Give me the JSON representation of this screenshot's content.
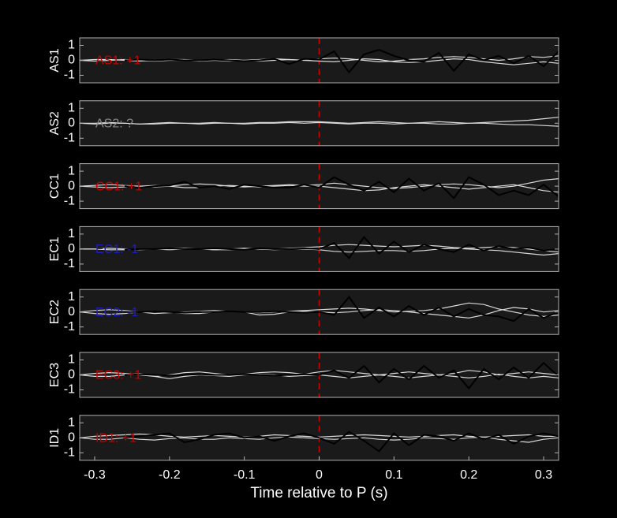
{
  "chart_data": [
    {
      "type": "line",
      "ylabel": "AS1",
      "annotation": "AS1: +1",
      "annotation_color": "#cc0000",
      "vline": 0,
      "vline_color": "#cc0000",
      "ylim": [
        -1.5,
        1.5
      ],
      "yticks": [
        -1,
        0,
        1
      ],
      "xlim": [
        -0.32,
        0.32
      ],
      "x": [
        -0.32,
        -0.3,
        -0.28,
        -0.26,
        -0.24,
        -0.22,
        -0.2,
        -0.18,
        -0.16,
        -0.14,
        -0.12,
        -0.1,
        -0.08,
        -0.06,
        -0.04,
        -0.02,
        0,
        0.02,
        0.04,
        0.06,
        0.08,
        0.1,
        0.12,
        0.14,
        0.16,
        0.18,
        0.2,
        0.22,
        0.24,
        0.26,
        0.28,
        0.3,
        0.32
      ],
      "series": [
        {
          "color": "#d9d9d9",
          "values": [
            0,
            0.05,
            0.05,
            0,
            -0.05,
            0,
            0.05,
            0.05,
            0,
            0,
            -0.05,
            0,
            0.05,
            0.1,
            0.05,
            0,
            0.1,
            0.15,
            0.1,
            0,
            -0.1,
            -0.05,
            0.05,
            0.1,
            0.2,
            0.25,
            0.2,
            0.1,
            0,
            0.1,
            0.25,
            0.2,
            0.3
          ]
        },
        {
          "color": "#d9d9d9",
          "values": [
            0,
            -0.05,
            0,
            0.05,
            0,
            -0.05,
            0,
            0,
            -0.05,
            0,
            0.05,
            0,
            -0.05,
            0,
            0.05,
            0,
            -0.05,
            -0.1,
            0,
            0.1,
            0.05,
            -0.1,
            -0.15,
            -0.1,
            0,
            0.1,
            0.05,
            -0.1,
            -0.2,
            -0.3,
            -0.2,
            -0.1,
            -0.2
          ]
        },
        {
          "color": "#000000",
          "values": [
            null,
            null,
            null,
            0,
            0.05,
            0,
            0.05,
            0,
            0,
            0.05,
            0,
            -0.05,
            0,
            0.1,
            -0.25,
            0.1,
            0.05,
            0.6,
            -0.8,
            0.4,
            0.7,
            0.3,
            0,
            -0.1,
            0.5,
            -0.7,
            0.4,
            0,
            0.3,
            -0.2,
            0.3,
            -0.4,
            0.6
          ]
        }
      ]
    },
    {
      "type": "line",
      "ylabel": "AS2",
      "annotation": "AS2: ?",
      "annotation_color": "#888888",
      "vline": 0,
      "vline_color": "#cc0000",
      "ylim": [
        -1.5,
        1.5
      ],
      "yticks": [
        -1,
        0,
        1
      ],
      "xlim": [
        -0.32,
        0.32
      ],
      "x": [
        -0.32,
        -0.3,
        -0.28,
        -0.26,
        -0.24,
        -0.22,
        -0.2,
        -0.18,
        -0.16,
        -0.14,
        -0.12,
        -0.1,
        -0.08,
        -0.06,
        -0.04,
        -0.02,
        0,
        0.02,
        0.04,
        0.06,
        0.08,
        0.1,
        0.12,
        0.14,
        0.16,
        0.18,
        0.2,
        0.22,
        0.24,
        0.26,
        0.28,
        0.3,
        0.32
      ],
      "series": [
        {
          "color": "#d9d9d9",
          "values": [
            0,
            0,
            0.05,
            0,
            -0.05,
            0,
            0.05,
            0,
            0,
            0.05,
            0,
            0,
            0.05,
            0.05,
            0.1,
            0.1,
            0.1,
            0.05,
            0,
            0.05,
            0.1,
            0.05,
            0,
            0.05,
            0.1,
            0.05,
            0,
            0.05,
            0.1,
            0.15,
            0.2,
            0.3,
            0.4
          ]
        },
        {
          "color": "#d9d9d9",
          "values": [
            0,
            -0.05,
            0,
            0,
            -0.05,
            -0.05,
            0,
            0,
            -0.05,
            0,
            0,
            -0.05,
            0,
            0,
            0.05,
            0,
            0.05,
            0,
            -0.05,
            0,
            0,
            -0.05,
            0,
            0,
            -0.05,
            -0.05,
            0,
            0,
            -0.05,
            -0.1,
            -0.1,
            -0.15,
            -0.2
          ]
        }
      ]
    },
    {
      "type": "line",
      "ylabel": "CC1",
      "annotation": "CC1: +1",
      "annotation_color": "#cc0000",
      "vline": 0,
      "vline_color": "#cc0000",
      "ylim": [
        -1.5,
        1.5
      ],
      "yticks": [
        -1,
        0,
        1
      ],
      "xlim": [
        -0.32,
        0.32
      ],
      "x": [
        -0.32,
        -0.3,
        -0.28,
        -0.26,
        -0.24,
        -0.22,
        -0.2,
        -0.18,
        -0.16,
        -0.14,
        -0.12,
        -0.1,
        -0.08,
        -0.06,
        -0.04,
        -0.02,
        0,
        0.02,
        0.04,
        0.06,
        0.08,
        0.1,
        0.12,
        0.14,
        0.16,
        0.18,
        0.2,
        0.22,
        0.24,
        0.26,
        0.28,
        0.3,
        0.32
      ],
      "series": [
        {
          "color": "#d9d9d9",
          "values": [
            0,
            0.05,
            0.1,
            0.05,
            0,
            -0.05,
            0,
            0.1,
            0.15,
            0.1,
            0,
            -0.05,
            0,
            0.05,
            0.1,
            0.05,
            0.1,
            0.2,
            0.1,
            0,
            -0.1,
            -0.15,
            -0.1,
            0,
            0.1,
            0.15,
            0.1,
            0,
            -0.1,
            0,
            0.2,
            0.4,
            0.5
          ]
        },
        {
          "color": "#d9d9d9",
          "values": [
            0,
            -0.05,
            -0.1,
            -0.05,
            0,
            0.05,
            0,
            -0.1,
            -0.1,
            0,
            0.05,
            0,
            -0.05,
            0,
            0.05,
            0,
            0,
            -0.1,
            -0.2,
            -0.3,
            -0.25,
            -0.1,
            0,
            0.1,
            0,
            -0.1,
            -0.2,
            -0.1,
            0,
            0.1,
            -0.1,
            -0.3,
            -0.4
          ]
        },
        {
          "color": "#000000",
          "values": [
            null,
            null,
            null,
            0,
            -0.1,
            0,
            0.05,
            0.3,
            -0.1,
            0,
            -0.2,
            0.1,
            0,
            -0.1,
            -0.1,
            0.1,
            -0.1,
            0.6,
            0.1,
            -0.3,
            0.3,
            -0.4,
            0.5,
            -0.3,
            0.2,
            -0.8,
            0.6,
            0.1,
            -0.6,
            -0.3,
            -0.6,
            0.1,
            -0.7
          ]
        }
      ]
    },
    {
      "type": "line",
      "ylabel": "EC1",
      "annotation": "EC1: -1",
      "annotation_color": "#1f1fb4",
      "vline": 0,
      "vline_color": "#cc0000",
      "ylim": [
        -1.5,
        1.5
      ],
      "yticks": [
        -1,
        0,
        1
      ],
      "xlim": [
        -0.32,
        0.32
      ],
      "x": [
        -0.32,
        -0.3,
        -0.28,
        -0.26,
        -0.24,
        -0.22,
        -0.2,
        -0.18,
        -0.16,
        -0.14,
        -0.12,
        -0.1,
        -0.08,
        -0.06,
        -0.04,
        -0.02,
        0,
        0.02,
        0.04,
        0.06,
        0.08,
        0.1,
        0.12,
        0.14,
        0.16,
        0.18,
        0.2,
        0.22,
        0.24,
        0.26,
        0.28,
        0.3,
        0.32
      ],
      "series": [
        {
          "color": "#d9d9d9",
          "values": [
            0,
            0,
            0.05,
            0,
            -0.05,
            0,
            0.05,
            0.05,
            0,
            -0.05,
            0,
            0.05,
            0,
            0,
            0.05,
            0.1,
            0.15,
            0.25,
            0.3,
            0.25,
            0.2,
            0.15,
            0.2,
            0.25,
            0.2,
            0.1,
            0.05,
            0.1,
            0.15,
            0.1,
            0,
            -0.1,
            -0.2
          ]
        },
        {
          "color": "#d9d9d9",
          "values": [
            0,
            0,
            -0.05,
            -0.05,
            0,
            0,
            -0.05,
            0,
            0,
            -0.05,
            -0.05,
            0,
            0,
            -0.05,
            0,
            0,
            -0.05,
            -0.15,
            -0.2,
            -0.15,
            -0.1,
            -0.1,
            -0.15,
            -0.1,
            0,
            0.05,
            0,
            -0.05,
            -0.1,
            -0.2,
            -0.3,
            -0.4,
            -0.3
          ]
        },
        {
          "color": "#000000",
          "values": [
            null,
            null,
            null,
            -0.05,
            0,
            0,
            0.05,
            0,
            0,
            0.05,
            0,
            -0.05,
            0.05,
            0,
            0,
            0.05,
            0,
            0.4,
            -0.6,
            0.8,
            -0.3,
            0.5,
            -0.2,
            0.3,
            0,
            -0.2,
            0.3,
            -0.1,
            0.2,
            0,
            0.1,
            -0.1,
            0
          ]
        }
      ]
    },
    {
      "type": "line",
      "ylabel": "EC2",
      "annotation": "EC2: -1",
      "annotation_color": "#1f1fb4",
      "vline": 0,
      "vline_color": "#cc0000",
      "ylim": [
        -1.5,
        1.5
      ],
      "yticks": [
        -1,
        0,
        1
      ],
      "xlim": [
        -0.32,
        0.32
      ],
      "x": [
        -0.32,
        -0.3,
        -0.28,
        -0.26,
        -0.24,
        -0.22,
        -0.2,
        -0.18,
        -0.16,
        -0.14,
        -0.12,
        -0.1,
        -0.08,
        -0.06,
        -0.04,
        -0.02,
        0,
        0.02,
        0.04,
        0.06,
        0.08,
        0.1,
        0.12,
        0.14,
        0.16,
        0.18,
        0.2,
        0.22,
        0.24,
        0.26,
        0.28,
        0.3,
        0.32
      ],
      "series": [
        {
          "color": "#d9d9d9",
          "values": [
            0,
            0.1,
            0.15,
            0.1,
            0,
            -0.1,
            -0.05,
            0,
            0.05,
            0.1,
            0.05,
            0,
            -0.05,
            0,
            0.05,
            0.1,
            0.15,
            0.2,
            0.25,
            0.2,
            0.1,
            0,
            0.05,
            0.1,
            0.2,
            0.4,
            0.6,
            0.5,
            0.2,
            0,
            -0.2,
            -0.3,
            -0.2
          ]
        },
        {
          "color": "#d9d9d9",
          "values": [
            0,
            -0.1,
            -0.15,
            -0.1,
            0,
            0.05,
            0,
            -0.1,
            -0.1,
            0,
            0.05,
            0,
            -0.2,
            -0.15,
            0,
            0.05,
            0,
            -0.05,
            0,
            0.1,
            0.15,
            0.1,
            0,
            -0.1,
            -0.2,
            -0.3,
            -0.4,
            -0.2,
            0.1,
            0.3,
            0.2,
            0,
            0.1
          ]
        },
        {
          "color": "#000000",
          "values": [
            null,
            null,
            null,
            0,
            0,
            0.05,
            0,
            -0.05,
            0,
            0,
            0.05,
            0,
            0,
            0.05,
            0,
            -0.05,
            0,
            -0.2,
            1,
            -0.4,
            0.3,
            -0.3,
            0.4,
            -0.2,
            0.3,
            -0.3,
            0.2,
            -0.2,
            -0.3,
            -0.6,
            0.2,
            -0.4,
            0
          ]
        }
      ]
    },
    {
      "type": "line",
      "ylabel": "EC3",
      "annotation": "EC3: +1",
      "annotation_color": "#cc0000",
      "vline": 0,
      "vline_color": "#cc0000",
      "ylim": [
        -1.5,
        1.5
      ],
      "yticks": [
        -1,
        0,
        1
      ],
      "xlim": [
        -0.32,
        0.32
      ],
      "x": [
        -0.32,
        -0.3,
        -0.28,
        -0.26,
        -0.24,
        -0.22,
        -0.2,
        -0.18,
        -0.16,
        -0.14,
        -0.12,
        -0.1,
        -0.08,
        -0.06,
        -0.04,
        -0.02,
        0,
        0.02,
        0.04,
        0.06,
        0.08,
        0.1,
        0.12,
        0.14,
        0.16,
        0.18,
        0.2,
        0.22,
        0.24,
        0.26,
        0.28,
        0.3,
        0.32
      ],
      "series": [
        {
          "color": "#d9d9d9",
          "values": [
            0,
            0.1,
            0.15,
            0.1,
            0,
            -0.1,
            0,
            0.15,
            0.2,
            0.1,
            0,
            0.05,
            0.15,
            0.2,
            0.15,
            0.05,
            0.2,
            0.3,
            0.2,
            0.1,
            0,
            0.1,
            0.2,
            0.1,
            0,
            0.1,
            0.3,
            0.2,
            0,
            0.1,
            0.2,
            0.1,
            0
          ]
        },
        {
          "color": "#d9d9d9",
          "values": [
            0,
            -0.1,
            -0.1,
            0,
            0.1,
            -0.1,
            -0.25,
            -0.1,
            0,
            -0.05,
            -0.1,
            0,
            0.05,
            0,
            -0.1,
            -0.05,
            0,
            -0.1,
            -0.2,
            -0.1,
            0,
            -0.1,
            -0.2,
            -0.1,
            0,
            -0.1,
            -0.2,
            -0.1,
            0.05,
            -0.1,
            -0.2,
            -0.1,
            -0.2
          ]
        },
        {
          "color": "#000000",
          "values": [
            null,
            null,
            null,
            0,
            0.05,
            0,
            -0.05,
            0,
            0.05,
            0,
            0,
            0.05,
            0,
            -0.05,
            0,
            0.05,
            0,
            0.3,
            -0.2,
            0.6,
            -0.5,
            0.4,
            -0.3,
            0.6,
            -0.2,
            0.3,
            -0.9,
            0.4,
            -0.3,
            0.5,
            -0.2,
            0.8,
            -0.1
          ]
        }
      ]
    },
    {
      "type": "line",
      "ylabel": "ID1",
      "annotation": "ID1: +1",
      "annotation_color": "#cc0000",
      "vline": 0,
      "vline_color": "#cc0000",
      "ylim": [
        -1.5,
        1.5
      ],
      "yticks": [
        -1,
        0,
        1
      ],
      "xlim": [
        -0.32,
        0.32
      ],
      "xticks": [
        -0.3,
        -0.2,
        -0.1,
        0,
        0.1,
        0.2,
        0.3
      ],
      "xlabel": "Time relative to P (s)",
      "x": [
        -0.32,
        -0.3,
        -0.28,
        -0.26,
        -0.24,
        -0.22,
        -0.2,
        -0.18,
        -0.16,
        -0.14,
        -0.12,
        -0.1,
        -0.08,
        -0.06,
        -0.04,
        -0.02,
        0,
        0.02,
        0.04,
        0.06,
        0.08,
        0.1,
        0.12,
        0.14,
        0.16,
        0.18,
        0.2,
        0.22,
        0.24,
        0.26,
        0.28,
        0.3,
        0.32
      ],
      "series": [
        {
          "color": "#d9d9d9",
          "values": [
            0,
            0.1,
            0.15,
            0.2,
            0.25,
            0.2,
            0.1,
            0.05,
            0.1,
            0.15,
            0.1,
            0.05,
            0.1,
            0.2,
            0.15,
            0.1,
            0.05,
            0.1,
            0.15,
            0.2,
            0.15,
            0.1,
            0.05,
            0.1,
            0.15,
            0.2,
            0.1,
            0.05,
            0.1,
            0.15,
            0.2,
            0.1,
            0.1
          ]
        },
        {
          "color": "#d9d9d9",
          "values": [
            0,
            -0.1,
            -0.1,
            0,
            -0.1,
            -0.15,
            -0.05,
            0,
            -0.1,
            -0.1,
            0,
            -0.05,
            -0.1,
            0,
            0.05,
            0,
            -0.05,
            -0.1,
            -0.05,
            0,
            -0.1,
            -0.15,
            -0.1,
            0,
            -0.05,
            -0.1,
            0,
            0.05,
            -0.1,
            -0.2,
            -0.3,
            -0.1,
            0
          ]
        },
        {
          "color": "#000000",
          "values": [
            null,
            null,
            null,
            0,
            0.1,
            0.2,
            0.3,
            -0.3,
            -0.1,
            0.2,
            0.3,
            0,
            0.1,
            -0.2,
            0.1,
            0.3,
            0,
            -0.4,
            0.4,
            -0.2,
            -0.9,
            0.3,
            -0.5,
            0.2,
            0.1,
            -0.2,
            0.3,
            -0.1,
            0.2,
            -0.4,
            0.1,
            0.3,
            0.1
          ]
        }
      ]
    }
  ]
}
